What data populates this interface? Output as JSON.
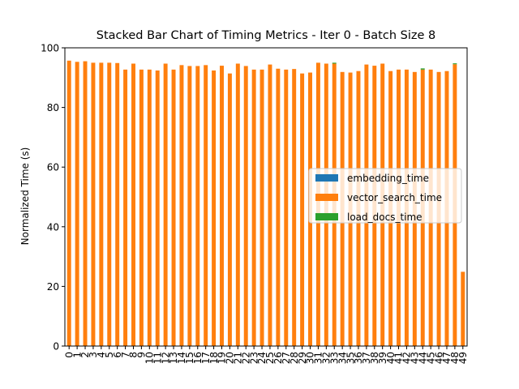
{
  "chart_data": {
    "type": "bar",
    "stacked": true,
    "title": "Stacked Bar Chart of Timing Metrics - Iter 0 - Batch Size 8",
    "xlabel": "",
    "ylabel": "Normalized Time (s)",
    "ylim": [
      0,
      100
    ],
    "yticks": [
      0,
      20,
      40,
      60,
      80,
      100
    ],
    "categories": [
      "0",
      "1",
      "2",
      "3",
      "4",
      "5",
      "6",
      "7",
      "8",
      "9",
      "10",
      "11",
      "12",
      "13",
      "14",
      "15",
      "16",
      "17",
      "18",
      "19",
      "20",
      "21",
      "22",
      "23",
      "24",
      "25",
      "26",
      "27",
      "28",
      "29",
      "30",
      "31",
      "32",
      "33",
      "34",
      "35",
      "36",
      "37",
      "38",
      "39",
      "40",
      "41",
      "42",
      "43",
      "44",
      "45",
      "46",
      "47",
      "48",
      "49"
    ],
    "series": [
      {
        "name": "embedding_time",
        "color": "#1f77b4",
        "values": [
          0.1,
          0.1,
          0.1,
          0.1,
          0.1,
          0.1,
          0.1,
          0.1,
          0.1,
          0.1,
          0.1,
          0.1,
          0.1,
          0.1,
          0.1,
          0.1,
          0.1,
          0.1,
          0.1,
          0.1,
          0.1,
          0.1,
          0.1,
          0.1,
          0.1,
          0.1,
          0.1,
          0.1,
          0.1,
          0.1,
          0.1,
          0.1,
          0.1,
          0.1,
          0.1,
          0.1,
          0.1,
          0.1,
          0.1,
          0.1,
          0.1,
          0.1,
          0.1,
          0.1,
          0.1,
          0.1,
          0.1,
          0.1,
          0.1,
          0.1
        ]
      },
      {
        "name": "vector_search_time",
        "color": "#ff7f0e",
        "values": [
          95.6,
          95.2,
          95.4,
          94.9,
          94.9,
          94.9,
          94.8,
          92.6,
          94.6,
          92.6,
          92.6,
          92.3,
          94.6,
          92.6,
          94.1,
          93.8,
          93.8,
          94.1,
          92.3,
          93.9,
          91.3,
          94.6,
          93.8,
          92.6,
          92.6,
          94.3,
          92.9,
          92.6,
          92.8,
          91.3,
          91.6,
          94.9,
          94.6,
          94.6,
          91.8,
          91.6,
          92.1,
          94.3,
          93.9,
          94.6,
          92.1,
          92.6,
          92.6,
          91.8,
          92.6,
          92.6,
          91.8,
          92.1,
          94.4,
          24.8
        ]
      },
      {
        "name": "load_docs_time",
        "color": "#2ca02c",
        "values": [
          0,
          0,
          0,
          0,
          0,
          0,
          0,
          0,
          0,
          0,
          0,
          0,
          0,
          0,
          0,
          0,
          0,
          0,
          0,
          0,
          0,
          0,
          0,
          0,
          0,
          0,
          0,
          0,
          0,
          0,
          0,
          0,
          0,
          0.3,
          0,
          0,
          0,
          0,
          0,
          0,
          0,
          0,
          0,
          0,
          0.4,
          0,
          0,
          0,
          0.3,
          0
        ]
      }
    ],
    "legend_position": "center-right",
    "grid": false
  }
}
